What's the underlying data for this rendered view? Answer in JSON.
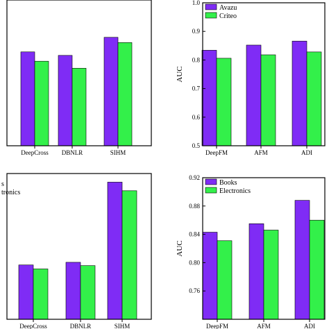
{
  "colors": {
    "series_1": "#7f2cf5",
    "series_2": "#33f04a",
    "frame": "#000000",
    "background": "#ffffff"
  },
  "chart_data": [
    {
      "type": "bar",
      "panel": "top-left",
      "categories": [
        "DeepCross",
        "DBNLR",
        "SIHM"
      ],
      "series": [
        {
          "values": [
            0.822,
            0.81,
            0.872
          ]
        },
        {
          "values": [
            0.79,
            0.766,
            0.854
          ]
        }
      ],
      "ylim": [
        0.5,
        1.0
      ],
      "yticks": [],
      "xlabel": "",
      "ylabel": "",
      "legend": [],
      "legend_position": "top-left",
      "grid": false
    },
    {
      "type": "bar",
      "panel": "top-right",
      "categories": [
        "DeepFM",
        "AFM",
        "ADI"
      ],
      "series": [
        {
          "name": "Avazu",
          "values": [
            0.834,
            0.852,
            0.866
          ]
        },
        {
          "name": "Criteo",
          "values": [
            0.806,
            0.818,
            0.828
          ]
        }
      ],
      "ylim": [
        0.5,
        1.0
      ],
      "yticks": [
        "0.5",
        "0.6",
        "0.7",
        "0.8",
        "0.9",
        "1.0"
      ],
      "xlabel": "",
      "ylabel": "AUC",
      "legend_position": "top-left",
      "grid": false
    },
    {
      "type": "bar",
      "panel": "bottom-left",
      "categories": [
        "DeepCross",
        "DBNLR",
        "SIHM"
      ],
      "series": [
        {
          "values": [
            0.782,
            0.786,
            0.907
          ]
        },
        {
          "values": [
            0.776,
            0.781,
            0.894
          ]
        }
      ],
      "ylim": [
        0.7,
        0.92
      ],
      "yticks": [],
      "xlabel": "",
      "ylabel": "",
      "legend": [
        "s",
        "tronics"
      ],
      "legend_position": "top-left",
      "grid": false
    },
    {
      "type": "bar",
      "panel": "bottom-right",
      "categories": [
        "DeepFM",
        "AFM",
        "ADI"
      ],
      "series": [
        {
          "name": "Books",
          "values": [
            0.843,
            0.855,
            0.888
          ]
        },
        {
          "name": "Electronics",
          "values": [
            0.831,
            0.846,
            0.86
          ]
        }
      ],
      "ylim": [
        0.72,
        0.92
      ],
      "yticks": [
        "0.76",
        "0.80",
        "0.84",
        "0.88",
        "0.92"
      ],
      "xlabel": "",
      "ylabel": "AUC",
      "legend_position": "top-left",
      "grid": false
    }
  ]
}
